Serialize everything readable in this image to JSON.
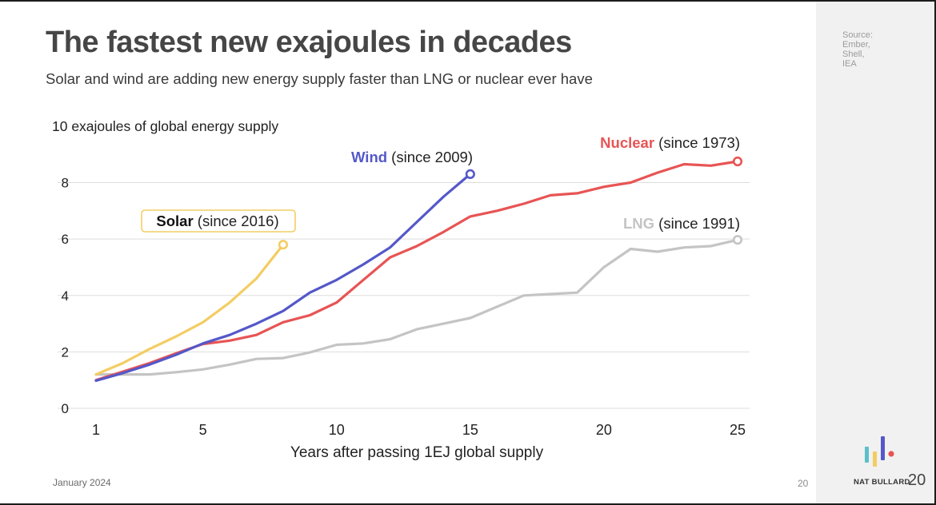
{
  "header": {
    "title": "The fastest new exajoules in decades",
    "subtitle": "Solar and wind are adding new energy supply faster than LNG or nuclear ever have"
  },
  "sidebar": {
    "source": "Source:\nEmber,\nShell,\nIEA",
    "brand": "NAT BULLARD",
    "slide_number": "20"
  },
  "footer": {
    "date": "January 2024",
    "page": "20"
  },
  "colors": {
    "solar": "#f3cd63",
    "wind": "#5458c9",
    "nuclear": "#e85454",
    "lng": "#c4c4c4",
    "grid": "#dddddd",
    "text": "#222222"
  },
  "chart_data": {
    "type": "line",
    "title": "",
    "ylabel": "10 exajoules of global energy supply",
    "xlabel": "Years after passing 1EJ global supply",
    "xlim": [
      1,
      25
    ],
    "ylim": [
      0,
      8
    ],
    "xticks": [
      1,
      5,
      10,
      15,
      20,
      25
    ],
    "yticks": [
      0,
      2,
      4,
      6,
      8
    ],
    "grid": true,
    "series": [
      {
        "key": "lng",
        "name": "LNG",
        "since": "(since 1991)",
        "x": [
          1,
          2,
          3,
          4,
          5,
          6,
          7,
          8,
          9,
          10,
          11,
          12,
          13,
          14,
          15,
          16,
          17,
          18,
          19,
          20,
          21,
          22,
          23,
          24,
          25
        ],
        "y": [
          1.2,
          1.2,
          1.2,
          1.28,
          1.38,
          1.55,
          1.75,
          1.78,
          1.98,
          2.25,
          2.3,
          2.45,
          2.8,
          3.0,
          3.2,
          3.6,
          4.0,
          4.05,
          4.1,
          5.0,
          5.65,
          5.55,
          5.7,
          5.75,
          5.97
        ]
      },
      {
        "key": "nuclear",
        "name": "Nuclear",
        "since": "(since 1973)",
        "x": [
          1,
          2,
          3,
          4,
          5,
          6,
          7,
          8,
          9,
          10,
          11,
          12,
          13,
          14,
          15,
          16,
          17,
          18,
          19,
          20,
          21,
          22,
          23,
          24,
          25
        ],
        "y": [
          1.0,
          1.3,
          1.6,
          1.95,
          2.28,
          2.4,
          2.6,
          3.05,
          3.3,
          3.75,
          4.55,
          5.35,
          5.75,
          6.25,
          6.8,
          7.0,
          7.25,
          7.55,
          7.62,
          7.85,
          8.0,
          8.35,
          8.65,
          8.6,
          8.75
        ]
      },
      {
        "key": "wind",
        "name": "Wind",
        "since": "(since 2009)",
        "x": [
          1,
          2,
          3,
          4,
          5,
          6,
          7,
          8,
          9,
          10,
          11,
          12,
          13,
          14,
          15
        ],
        "y": [
          0.98,
          1.25,
          1.55,
          1.9,
          2.3,
          2.6,
          3.0,
          3.45,
          4.1,
          4.55,
          5.1,
          5.7,
          6.6,
          7.5,
          8.3
        ]
      },
      {
        "key": "solar",
        "name": "Solar",
        "since": "(since 2016)",
        "x": [
          1,
          2,
          3,
          4,
          5,
          6,
          7,
          8
        ],
        "y": [
          1.2,
          1.6,
          2.1,
          2.55,
          3.05,
          3.75,
          4.6,
          5.8
        ]
      }
    ]
  }
}
